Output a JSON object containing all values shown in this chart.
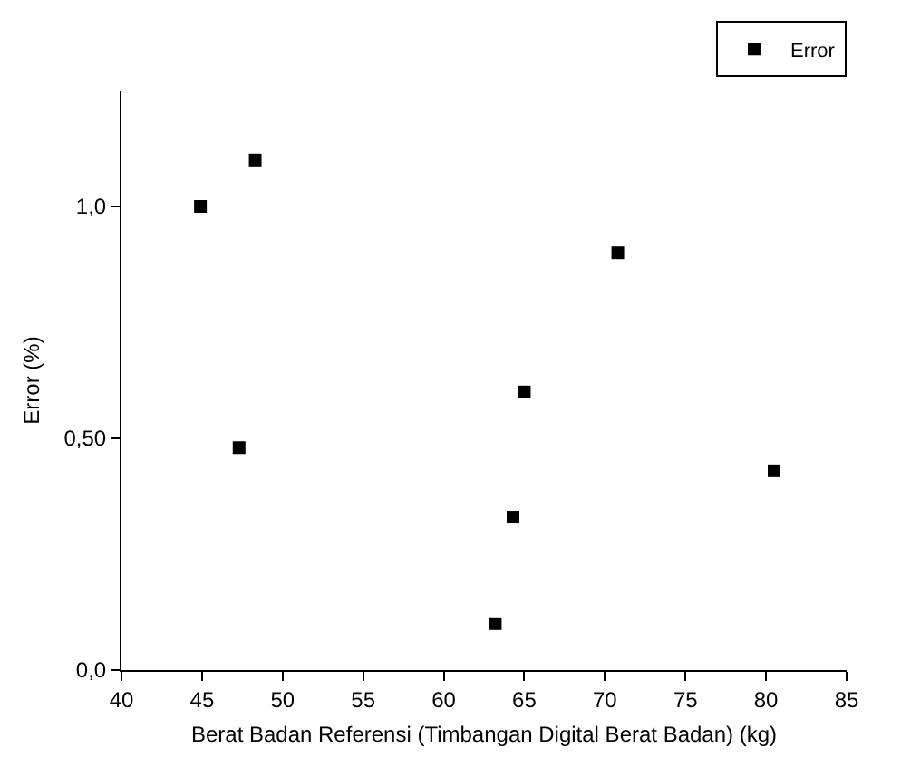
{
  "chart_data": {
    "type": "scatter",
    "xlabel": "Berat Badan Referensi (Timbangan Digital Berat Badan) (kg)",
    "ylabel": "Error (%)",
    "x": [
      44.9,
      48.3,
      47.3,
      63.2,
      64.3,
      65.0,
      70.8,
      80.5
    ],
    "series": [
      {
        "name": "Error",
        "color": "#000000",
        "values": [
          1.0,
          1.1,
          0.48,
          0.1,
          0.33,
          0.6,
          0.9,
          0.43
        ]
      }
    ],
    "xlim": [
      40,
      85
    ],
    "xticks": [
      40,
      45,
      50,
      55,
      60,
      65,
      70,
      75,
      80,
      85
    ],
    "ylim": [
      0,
      1.25
    ],
    "yticks": [
      {
        "value": 0,
        "label": "0,0"
      },
      {
        "value": 0.5,
        "label": "0,50"
      },
      {
        "value": 1,
        "label": "1,0"
      }
    ],
    "grid": false,
    "legend": "top right",
    "marker": "square"
  }
}
